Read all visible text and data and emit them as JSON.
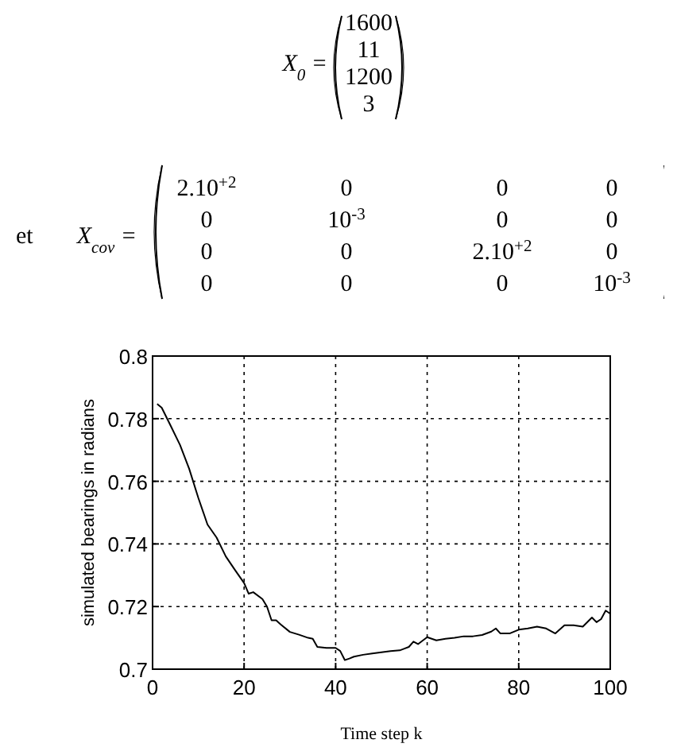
{
  "chart_data": {
    "type": "line",
    "xlabel": "Time step k",
    "ylabel": "simulated bearings in radians",
    "annotations": [
      "X$_{0}$ =",
      "1600",
      "11",
      "1200",
      "3",
      "et",
      "X$_{cov}$ =",
      "2.10$^{+2}$",
      "0",
      "0",
      "0",
      "0",
      "10$^{-3}$",
      "0",
      "0",
      "0",
      "0",
      "2.10$^{+2}$",
      "0",
      "0",
      "0",
      "0",
      "10$^{-3}$"
    ],
    "xlim": [
      0,
      100
    ],
    "xticks": [
      0,
      20,
      40,
      60,
      80,
      100
    ],
    "ylim": [
      0.7,
      0.8
    ],
    "yticks": [
      0.7,
      0.72,
      0.74,
      0.76,
      0.78,
      0.8
    ],
    "grid": true,
    "series": [
      {
        "color": "#000000",
        "x": [
          1,
          2,
          4,
          6,
          8,
          10,
          12,
          14,
          16,
          18,
          20,
          21,
          22,
          24,
          25,
          26,
          27,
          28,
          30,
          32,
          34,
          35,
          36,
          38,
          40,
          41,
          42,
          43,
          44,
          46,
          48,
          50,
          52,
          54,
          56,
          57,
          58,
          60,
          62,
          64,
          66,
          68,
          70,
          72,
          74,
          75,
          76,
          78,
          80,
          82,
          84,
          86,
          88,
          90,
          92,
          94,
          96,
          97,
          98,
          99,
          100
        ],
        "values": [
          0.7847,
          0.7835,
          0.7776,
          0.7716,
          0.764,
          0.7547,
          0.7462,
          0.742,
          0.736,
          0.7317,
          0.7275,
          0.7241,
          0.7246,
          0.7224,
          0.72,
          0.7156,
          0.7156,
          0.7143,
          0.7119,
          0.711,
          0.71,
          0.7097,
          0.7071,
          0.7068,
          0.7068,
          0.7058,
          0.7029,
          0.7034,
          0.704,
          0.7046,
          0.705,
          0.7054,
          0.7058,
          0.706,
          0.7071,
          0.7088,
          0.708,
          0.7102,
          0.7092,
          0.7097,
          0.71,
          0.7105,
          0.7105,
          0.7109,
          0.712,
          0.713,
          0.7114,
          0.7114,
          0.7126,
          0.713,
          0.7136,
          0.713,
          0.7114,
          0.714,
          0.714,
          0.7136,
          0.7165,
          0.715,
          0.716,
          0.7187,
          0.7177
        ]
      }
    ]
  }
}
